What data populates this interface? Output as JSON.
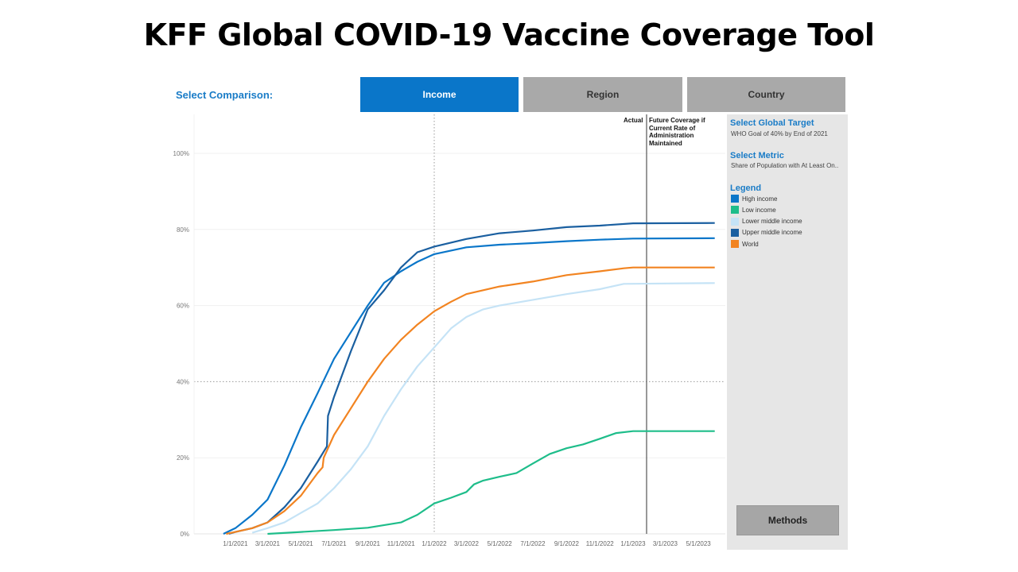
{
  "title": "KFF Global COVID-19 Vaccine Coverage Tool",
  "comparison": {
    "label": "Select Comparison:",
    "tabs": [
      {
        "label": "Income",
        "active": true
      },
      {
        "label": "Region",
        "active": false
      },
      {
        "label": "Country",
        "active": false
      }
    ]
  },
  "sidebar": {
    "target_heading": "Select Global Target",
    "target_value": "WHO Goal of 40% by End of 2021",
    "metric_heading": "Select Metric",
    "metric_value": "Share of Population with At Least On..",
    "legend_heading": "Legend",
    "methods_label": "Methods"
  },
  "annotations": {
    "actual": "Actual",
    "future": "Future Coverage if Current Rate of Administration Maintained"
  },
  "colors": {
    "accent": "#0a76c9",
    "tab_inactive": "#a9a9a9"
  },
  "chart_data": {
    "type": "line",
    "title": "",
    "xlabel": "",
    "ylabel": "",
    "x_ticks": [
      "1/1/2021",
      "3/1/2021",
      "5/1/2021",
      "7/1/2021",
      "9/1/2021",
      "11/1/2021",
      "1/1/2022",
      "3/1/2022",
      "5/1/2022",
      "7/1/2022",
      "9/1/2022",
      "11/1/2022",
      "1/1/2023",
      "3/1/2023",
      "5/1/2023"
    ],
    "y_ticks": [
      "0%",
      "20%",
      "40%",
      "60%",
      "80%",
      "100%"
    ],
    "ylim": [
      0,
      100
    ],
    "target_line": 40,
    "grid": true,
    "series": [
      {
        "name": "High income",
        "color": "#0a76c9",
        "points": [
          [
            "2020-12-10",
            0
          ],
          [
            "2021-01-01",
            1.5
          ],
          [
            "2021-02-01",
            5
          ],
          [
            "2021-03-01",
            9
          ],
          [
            "2021-04-01",
            18
          ],
          [
            "2021-05-01",
            28
          ],
          [
            "2021-06-01",
            37
          ],
          [
            "2021-07-01",
            46
          ],
          [
            "2021-08-01",
            53
          ],
          [
            "2021-09-01",
            60
          ],
          [
            "2021-10-01",
            66
          ],
          [
            "2021-11-01",
            69
          ],
          [
            "2021-12-01",
            71.5
          ],
          [
            "2022-01-01",
            73.5
          ],
          [
            "2022-03-01",
            75.3
          ],
          [
            "2022-05-01",
            76
          ],
          [
            "2022-07-01",
            76.4
          ],
          [
            "2022-09-01",
            76.9
          ],
          [
            "2022-11-01",
            77.3
          ],
          [
            "2023-01-01",
            77.6
          ],
          [
            "2023-05-31",
            77.7
          ]
        ]
      },
      {
        "name": "Low income",
        "color": "#1ebd8a",
        "points": [
          [
            "2021-03-01",
            0
          ],
          [
            "2021-05-01",
            0.5
          ],
          [
            "2021-07-01",
            1
          ],
          [
            "2021-09-01",
            1.6
          ],
          [
            "2021-11-01",
            3
          ],
          [
            "2021-12-01",
            5
          ],
          [
            "2022-01-01",
            8
          ],
          [
            "2022-02-01",
            9.5
          ],
          [
            "2022-03-01",
            11
          ],
          [
            "2022-03-15",
            13
          ],
          [
            "2022-04-01",
            14
          ],
          [
            "2022-05-01",
            15
          ],
          [
            "2022-06-01",
            16
          ],
          [
            "2022-07-01",
            18.5
          ],
          [
            "2022-08-01",
            21
          ],
          [
            "2022-09-01",
            22.5
          ],
          [
            "2022-10-01",
            23.5
          ],
          [
            "2022-11-01",
            25
          ],
          [
            "2022-12-01",
            26.5
          ],
          [
            "2023-01-01",
            27
          ],
          [
            "2023-05-31",
            27
          ]
        ]
      },
      {
        "name": "Lower middle income",
        "color": "#c5e3f6",
        "points": [
          [
            "2021-02-01",
            0.3
          ],
          [
            "2021-03-01",
            1.5
          ],
          [
            "2021-04-01",
            3
          ],
          [
            "2021-05-01",
            5.5
          ],
          [
            "2021-06-01",
            8
          ],
          [
            "2021-07-01",
            12
          ],
          [
            "2021-08-01",
            17
          ],
          [
            "2021-09-01",
            23
          ],
          [
            "2021-10-01",
            31
          ],
          [
            "2021-11-01",
            38
          ],
          [
            "2021-12-01",
            44
          ],
          [
            "2022-01-01",
            49
          ],
          [
            "2022-02-01",
            54
          ],
          [
            "2022-03-01",
            57
          ],
          [
            "2022-04-01",
            59
          ],
          [
            "2022-05-01",
            60
          ],
          [
            "2022-07-01",
            61.5
          ],
          [
            "2022-09-01",
            63
          ],
          [
            "2022-11-01",
            64.3
          ],
          [
            "2022-12-15",
            65.7
          ],
          [
            "2023-05-31",
            65.9
          ]
        ]
      },
      {
        "name": "Upper middle income",
        "color": "#1a5fa0",
        "points": [
          [
            "2020-12-20",
            0
          ],
          [
            "2021-01-01",
            0.5
          ],
          [
            "2021-02-01",
            1.5
          ],
          [
            "2021-03-01",
            3
          ],
          [
            "2021-04-01",
            7
          ],
          [
            "2021-05-01",
            12
          ],
          [
            "2021-06-01",
            19
          ],
          [
            "2021-06-18",
            23
          ],
          [
            "2021-06-20",
            31
          ],
          [
            "2021-07-01",
            36
          ],
          [
            "2021-08-01",
            48
          ],
          [
            "2021-09-01",
            59
          ],
          [
            "2021-10-01",
            64
          ],
          [
            "2021-11-01",
            70
          ],
          [
            "2021-12-01",
            74
          ],
          [
            "2022-01-01",
            75.5
          ],
          [
            "2022-03-01",
            77.5
          ],
          [
            "2022-05-01",
            79
          ],
          [
            "2022-07-01",
            79.7
          ],
          [
            "2022-09-01",
            80.6
          ],
          [
            "2022-11-01",
            81
          ],
          [
            "2023-01-01",
            81.6
          ],
          [
            "2023-05-31",
            81.7
          ]
        ]
      },
      {
        "name": "World",
        "color": "#f28421",
        "points": [
          [
            "2020-12-15",
            0
          ],
          [
            "2021-01-01",
            0.5
          ],
          [
            "2021-02-01",
            1.5
          ],
          [
            "2021-03-01",
            3
          ],
          [
            "2021-04-01",
            6
          ],
          [
            "2021-05-01",
            10
          ],
          [
            "2021-06-01",
            16
          ],
          [
            "2021-06-10",
            17.5
          ],
          [
            "2021-06-12",
            20
          ],
          [
            "2021-07-01",
            26
          ],
          [
            "2021-08-01",
            33
          ],
          [
            "2021-09-01",
            40
          ],
          [
            "2021-10-01",
            46
          ],
          [
            "2021-11-01",
            51
          ],
          [
            "2021-12-01",
            55
          ],
          [
            "2022-01-01",
            58.5
          ],
          [
            "2022-02-01",
            61
          ],
          [
            "2022-03-01",
            63
          ],
          [
            "2022-05-01",
            65
          ],
          [
            "2022-07-01",
            66.3
          ],
          [
            "2022-09-01",
            68
          ],
          [
            "2022-11-01",
            69
          ],
          [
            "2022-12-15",
            69.8
          ],
          [
            "2023-01-01",
            70
          ],
          [
            "2023-05-31",
            70
          ]
        ]
      }
    ]
  }
}
